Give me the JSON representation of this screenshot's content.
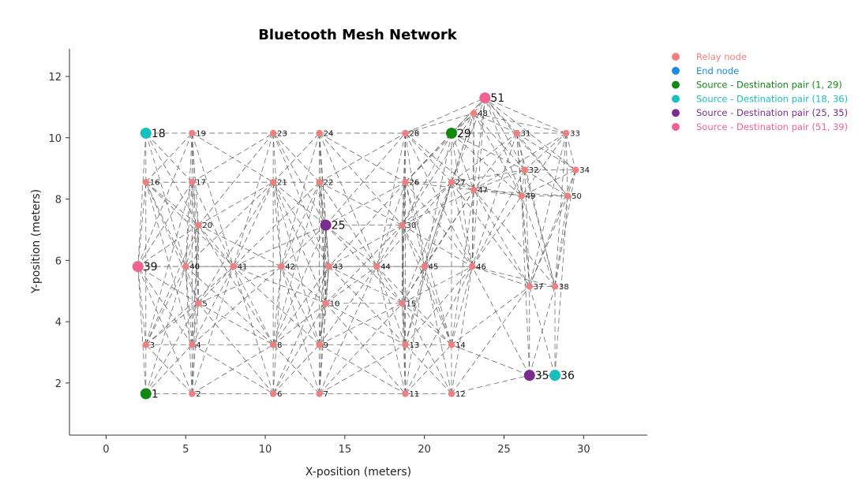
{
  "chart_data": {
    "type": "scatter",
    "title": "Bluetooth Mesh Network",
    "xlabel": "X-position (meters)",
    "ylabel": "Y-position (meters)",
    "xlim": [
      -2.3,
      34
    ],
    "ylim": [
      0.3,
      12.9
    ],
    "xticks": [
      0,
      5,
      10,
      15,
      20,
      25,
      30
    ],
    "yticks": [
      2,
      4,
      6,
      8,
      10,
      12
    ],
    "grid": false,
    "legend_position": "top-right",
    "legend": [
      {
        "label": "Relay node",
        "color": "#f08080"
      },
      {
        "label": "End node",
        "color": "#1e88e5"
      },
      {
        "label": "Source - Destination pair (1, 29)",
        "color": "#118811"
      },
      {
        "label": "Source - Destination pair (18, 36)",
        "color": "#17bfbf"
      },
      {
        "label": "Source - Destination pair (25, 35)",
        "color": "#7b2d8e"
      },
      {
        "label": "Source - Destination pair (51, 39)",
        "color": "#f06292"
      }
    ],
    "nodes": [
      {
        "id": "1",
        "x": 2.5,
        "y": 1.65,
        "kind": "source1"
      },
      {
        "id": "2",
        "x": 5.4,
        "y": 1.65,
        "kind": "relay"
      },
      {
        "id": "3",
        "x": 2.5,
        "y": 3.25,
        "kind": "relay"
      },
      {
        "id": "4",
        "x": 5.4,
        "y": 3.25,
        "kind": "relay"
      },
      {
        "id": "5",
        "x": 5.8,
        "y": 4.6,
        "kind": "relay"
      },
      {
        "id": "6",
        "x": 10.5,
        "y": 1.65,
        "kind": "relay"
      },
      {
        "id": "7",
        "x": 13.4,
        "y": 1.65,
        "kind": "relay"
      },
      {
        "id": "8",
        "x": 10.5,
        "y": 3.25,
        "kind": "relay"
      },
      {
        "id": "9",
        "x": 13.4,
        "y": 3.25,
        "kind": "relay"
      },
      {
        "id": "10",
        "x": 13.8,
        "y": 4.6,
        "kind": "relay"
      },
      {
        "id": "11",
        "x": 18.8,
        "y": 1.65,
        "kind": "relay"
      },
      {
        "id": "12",
        "x": 21.7,
        "y": 1.65,
        "kind": "relay"
      },
      {
        "id": "13",
        "x": 18.8,
        "y": 3.25,
        "kind": "relay"
      },
      {
        "id": "14",
        "x": 21.7,
        "y": 3.25,
        "kind": "relay"
      },
      {
        "id": "15",
        "x": 18.6,
        "y": 4.6,
        "kind": "relay"
      },
      {
        "id": "16",
        "x": 2.5,
        "y": 8.55,
        "kind": "relay"
      },
      {
        "id": "17",
        "x": 5.4,
        "y": 8.55,
        "kind": "relay"
      },
      {
        "id": "18",
        "x": 2.5,
        "y": 10.15,
        "kind": "source2"
      },
      {
        "id": "19",
        "x": 5.4,
        "y": 10.15,
        "kind": "relay"
      },
      {
        "id": "20",
        "x": 5.8,
        "y": 7.15,
        "kind": "relay"
      },
      {
        "id": "21",
        "x": 10.5,
        "y": 8.55,
        "kind": "relay"
      },
      {
        "id": "22",
        "x": 13.4,
        "y": 8.55,
        "kind": "relay"
      },
      {
        "id": "23",
        "x": 10.5,
        "y": 10.15,
        "kind": "relay"
      },
      {
        "id": "24",
        "x": 13.4,
        "y": 10.15,
        "kind": "relay"
      },
      {
        "id": "25",
        "x": 13.8,
        "y": 7.15,
        "kind": "source3"
      },
      {
        "id": "26",
        "x": 18.8,
        "y": 8.55,
        "kind": "relay"
      },
      {
        "id": "27",
        "x": 21.7,
        "y": 8.55,
        "kind": "relay"
      },
      {
        "id": "28",
        "x": 18.8,
        "y": 10.15,
        "kind": "relay"
      },
      {
        "id": "29",
        "x": 21.7,
        "y": 10.15,
        "kind": "source1"
      },
      {
        "id": "30",
        "x": 18.6,
        "y": 7.15,
        "kind": "relay"
      },
      {
        "id": "31",
        "x": 25.8,
        "y": 10.15,
        "kind": "relay"
      },
      {
        "id": "32",
        "x": 26.3,
        "y": 8.95,
        "kind": "relay"
      },
      {
        "id": "33",
        "x": 28.9,
        "y": 10.15,
        "kind": "relay"
      },
      {
        "id": "34",
        "x": 29.5,
        "y": 8.95,
        "kind": "relay"
      },
      {
        "id": "35",
        "x": 26.6,
        "y": 2.25,
        "kind": "source3"
      },
      {
        "id": "36",
        "x": 28.2,
        "y": 2.25,
        "kind": "source2"
      },
      {
        "id": "37",
        "x": 26.6,
        "y": 5.15,
        "kind": "relay"
      },
      {
        "id": "38",
        "x": 28.2,
        "y": 5.15,
        "kind": "relay"
      },
      {
        "id": "39",
        "x": 2.0,
        "y": 5.8,
        "kind": "source4"
      },
      {
        "id": "40",
        "x": 5.0,
        "y": 5.8,
        "kind": "relay"
      },
      {
        "id": "41",
        "x": 8.0,
        "y": 5.8,
        "kind": "relay"
      },
      {
        "id": "42",
        "x": 11.0,
        "y": 5.8,
        "kind": "relay"
      },
      {
        "id": "43",
        "x": 14.0,
        "y": 5.8,
        "kind": "relay"
      },
      {
        "id": "44",
        "x": 17.0,
        "y": 5.8,
        "kind": "relay"
      },
      {
        "id": "45",
        "x": 20.0,
        "y": 5.8,
        "kind": "relay"
      },
      {
        "id": "46",
        "x": 23.0,
        "y": 5.8,
        "kind": "relay"
      },
      {
        "id": "47",
        "x": 23.1,
        "y": 8.3,
        "kind": "relay"
      },
      {
        "id": "48",
        "x": 23.1,
        "y": 10.8,
        "kind": "relay"
      },
      {
        "id": "49",
        "x": 26.1,
        "y": 8.1,
        "kind": "relay"
      },
      {
        "id": "50",
        "x": 29.0,
        "y": 8.1,
        "kind": "relay"
      },
      {
        "id": "51",
        "x": 23.8,
        "y": 11.3,
        "kind": "source4"
      }
    ]
  }
}
